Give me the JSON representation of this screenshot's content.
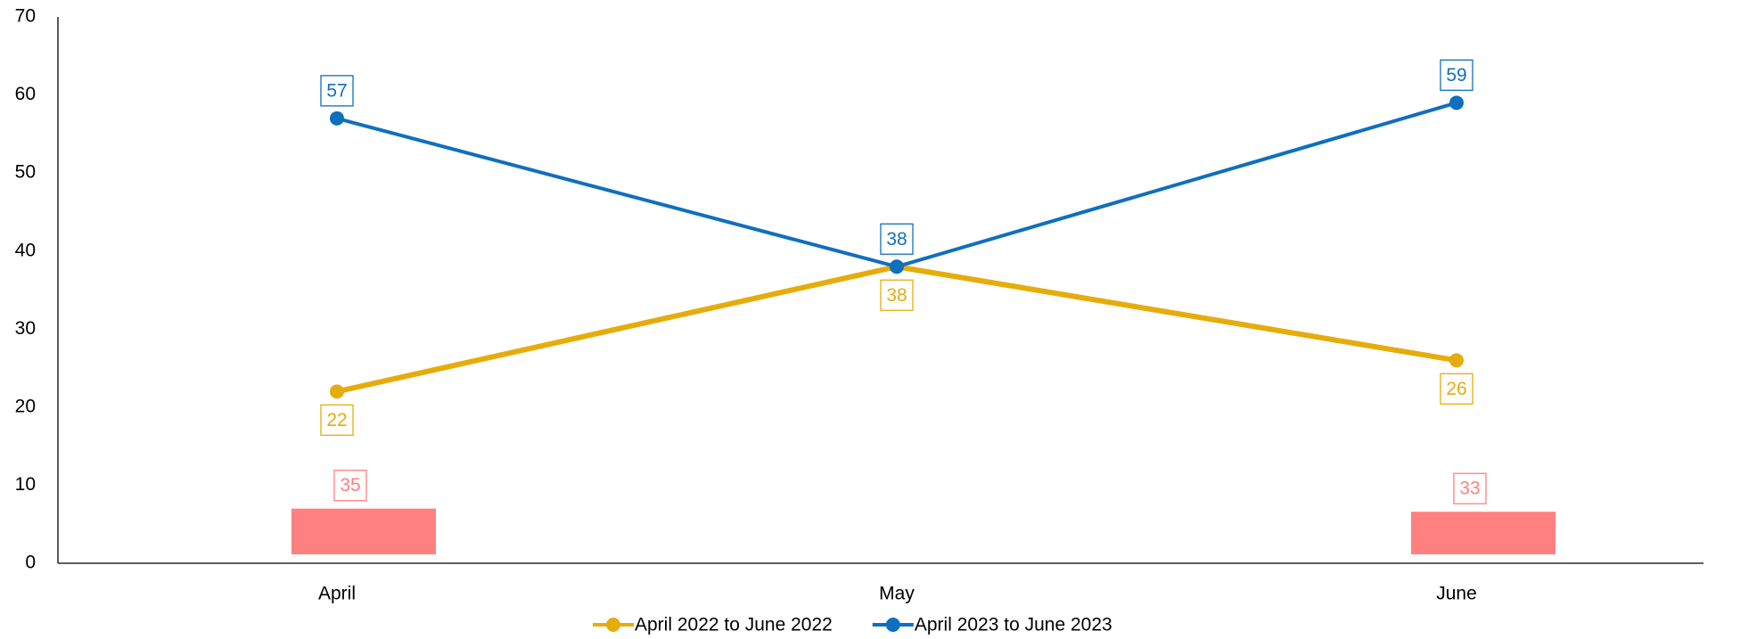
{
  "chart_data": {
    "type": "line",
    "categories": [
      "April",
      "May",
      "June"
    ],
    "series": [
      {
        "name": "April 2022 to June 2022",
        "color": "#e6ac0c",
        "values": [
          22,
          38,
          26
        ]
      },
      {
        "name": "April 2023 to June 2023",
        "color": "#0f6fbf",
        "values": [
          57,
          38,
          59
        ]
      },
      {
        "type": "bar",
        "axis": "y2",
        "color": "#ff8080",
        "values": [
          35,
          null,
          33
        ]
      }
    ],
    "ylim": [
      0,
      70
    ],
    "yticks": [
      0,
      10,
      20,
      30,
      40,
      50,
      60,
      70
    ],
    "y2lim": [
      0,
      350
    ],
    "grid": false,
    "legend": "bottom"
  }
}
